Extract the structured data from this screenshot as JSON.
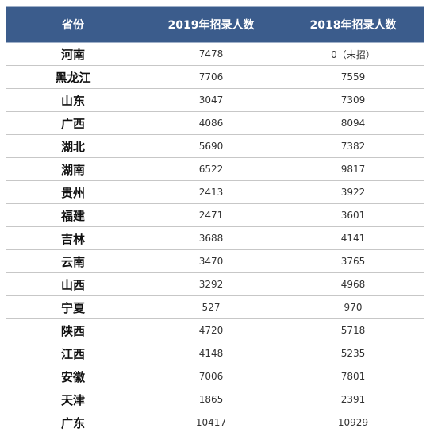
{
  "table": {
    "headers": [
      "省份",
      "2019年招录人数",
      "2018年招录人数"
    ],
    "rows": [
      [
        "河南",
        "7478",
        "0（未招）"
      ],
      [
        "黑龙江",
        "7706",
        "7559"
      ],
      [
        "山东",
        "3047",
        "7309"
      ],
      [
        "广西",
        "4086",
        "8094"
      ],
      [
        "湖北",
        "5690",
        "7382"
      ],
      [
        "湖南",
        "6522",
        "9817"
      ],
      [
        "贵州",
        "2413",
        "3922"
      ],
      [
        "福建",
        "2471",
        "3601"
      ],
      [
        "吉林",
        "3688",
        "4141"
      ],
      [
        "云南",
        "3470",
        "3765"
      ],
      [
        "山西",
        "3292",
        "4968"
      ],
      [
        "宁夏",
        "527",
        "970"
      ],
      [
        "陕西",
        "4720",
        "5718"
      ],
      [
        "江西",
        "4148",
        "5235"
      ],
      [
        "安徽",
        "7006",
        "7801"
      ],
      [
        "天津",
        "1865",
        "2391"
      ],
      [
        "广东",
        "10417",
        "10929"
      ]
    ]
  },
  "colors": {
    "header_bg": "#3b5c8c",
    "header_text": "#ffffff",
    "grid": "#c7c7c7"
  }
}
